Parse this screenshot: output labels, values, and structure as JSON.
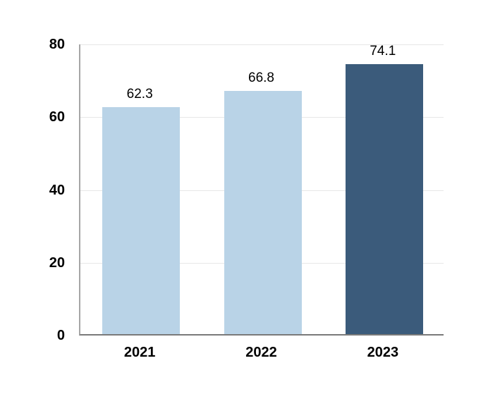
{
  "chart_data": {
    "type": "bar",
    "title": "",
    "xlabel": "",
    "ylabel": "",
    "categories": [
      "2021",
      "2022",
      "2023"
    ],
    "values": [
      62.3,
      66.8,
      74.1
    ],
    "value_labels": [
      "62.3",
      "66.8",
      "74.1"
    ],
    "ylim": [
      0,
      80
    ],
    "yticks": [
      0,
      20,
      40,
      60,
      80
    ],
    "grid": true,
    "legend": false,
    "bar_colors": [
      "#B9D3E7",
      "#B9D3E7",
      "#3B5B7B"
    ]
  },
  "colors": {
    "background": "#FFFFFF",
    "bar_light": "#B9D3E7",
    "bar_dark": "#3B5B7B",
    "gridline": "#E7E7E7",
    "y_axis_line": "#A6A6A6",
    "x_baseline": "#7A7A7A",
    "label_text": "#000000"
  }
}
